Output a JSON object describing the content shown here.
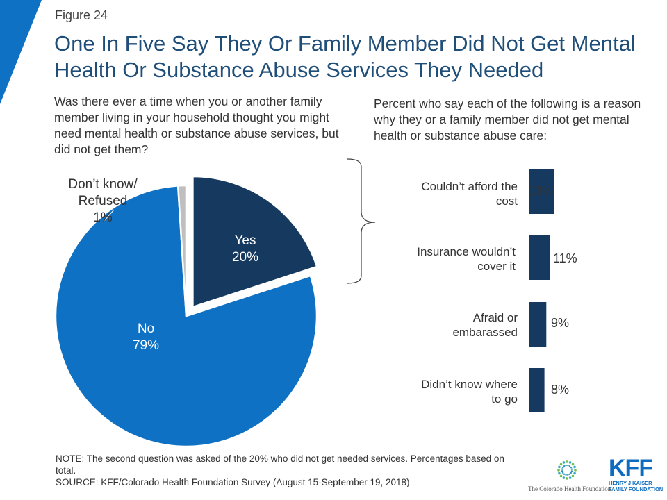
{
  "header": {
    "figure_label": "Figure 24",
    "title": "One In Five Say They Or Family Member Did Not Get Mental Health Or Substance Abuse Services They Needed"
  },
  "left_question": "Was there ever a time when you or another family member living in your household thought you might need mental health or substance abuse services, but did not get them?",
  "right_question": "Percent who say each of the following is a reason why they or a family member did not get mental health or substance abuse care:",
  "chart_data": [
    {
      "type": "pie",
      "slices": [
        {
          "label_line1": "Yes",
          "label_line2": "20%",
          "value": 20,
          "color": "#163a5f",
          "exploded": true
        },
        {
          "label_line1": "No",
          "label_line2": "79%",
          "value": 79,
          "color": "#0f71c4"
        },
        {
          "label_line1": "Don’t know/",
          "label_line2": "Refused",
          "label_line3": "1%",
          "value": 1,
          "color": "#bfbfbf"
        }
      ]
    },
    {
      "type": "bar",
      "orientation": "horizontal",
      "categories": [
        "Couldn’t afford the cost",
        "Insurance wouldn’t cover it",
        "Afraid or embarassed",
        "Didn’t know where to go"
      ],
      "category_lines": [
        [
          "Couldn’t afford the",
          "cost"
        ],
        [
          "Insurance wouldn’t",
          "cover it"
        ],
        [
          "Afraid or",
          "embarassed"
        ],
        [
          "Didn’t know where",
          "to go"
        ]
      ],
      "values": [
        13,
        11,
        9,
        8
      ],
      "value_labels": [
        "13%",
        "11%",
        "9%",
        "8%"
      ],
      "color": "#163a5f"
    }
  ],
  "notes": {
    "note": "NOTE: The second question was asked of the 20% who did not get needed services. Percentages based on total.",
    "source": "SOURCE: KFF/Colorado Health Foundation Survey (August 15-September 19, 2018)"
  },
  "logos": {
    "chf_text": "The Colorado Health Foundation",
    "kff_mark": "KFF",
    "kff_sub_1": "HENRY J KAISER",
    "kff_sub_2": "FAMILY FOUNDATION"
  },
  "colors": {
    "accent_blue": "#0f71c4",
    "dark_navy": "#163a5f",
    "title_blue": "#1f4e79"
  }
}
